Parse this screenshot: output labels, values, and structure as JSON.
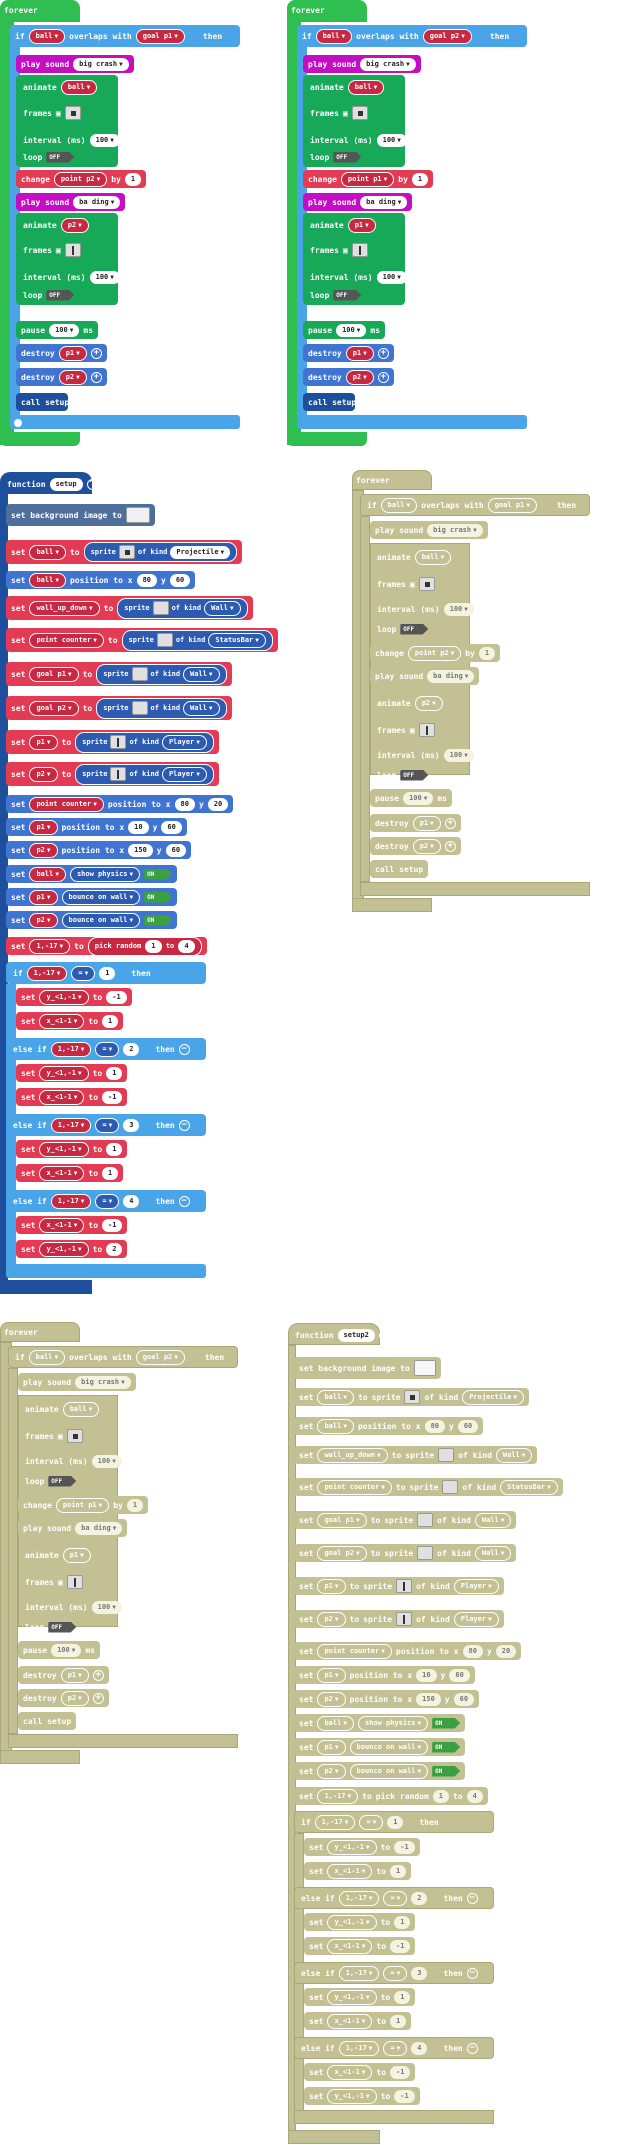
{
  "forever_label": "forever",
  "if_label": "if",
  "then_label": "then",
  "overlaps_label": "overlaps with",
  "play_sound_label": "play sound",
  "animate_label": "animate",
  "frames_label": "frames",
  "interval_label": "interval (ms)",
  "loop_label": "loop",
  "off_label": "OFF",
  "on_label": "ON",
  "change_label": "change",
  "by_label": "by",
  "pause_label": "pause",
  "ms_label": "ms",
  "destroy_label": "destroy",
  "call_label": "call setup",
  "function_label": "function",
  "set_label": "set",
  "to_label": "to",
  "sprite_label": "sprite",
  "of_kind_label": "of kind",
  "position_label": "position to x",
  "y_label": "y",
  "show_physics_label": "show physics",
  "bounce_label": "bounce on wall",
  "pick_random_label": "pick random",
  "else_if_label": "else if",
  "eq_label": "=",
  "set_bg_label": "set background image to",
  "vals": {
    "ball": "ball",
    "goal_p1": "goal p1",
    "goal_p2": "goal p2",
    "big_crash": "big crash",
    "ba_ding": "ba ding",
    "p1": "p1",
    "p2": "p2",
    "point_p1": "point p1",
    "point_p2": "point p2",
    "i100": "100",
    "one": "1",
    "wall_up_down": "wall_up_down",
    "point_counter": "point counter",
    "projectile": "Projectile",
    "wall": "Wall",
    "statusbar": "StatusBar",
    "player": "Player",
    "n80": "80",
    "n60": "60",
    "n10": "10",
    "n150": "150",
    "n20": "20",
    "n1_17": "1,-17",
    "n4": "4",
    "n2": "2",
    "n3": "3",
    "neg1": "-1",
    "y_ci": "y_<1,-1",
    "x_ci": "x_<1-1",
    "setup": "setup",
    "setup2": "setup2"
  }
}
